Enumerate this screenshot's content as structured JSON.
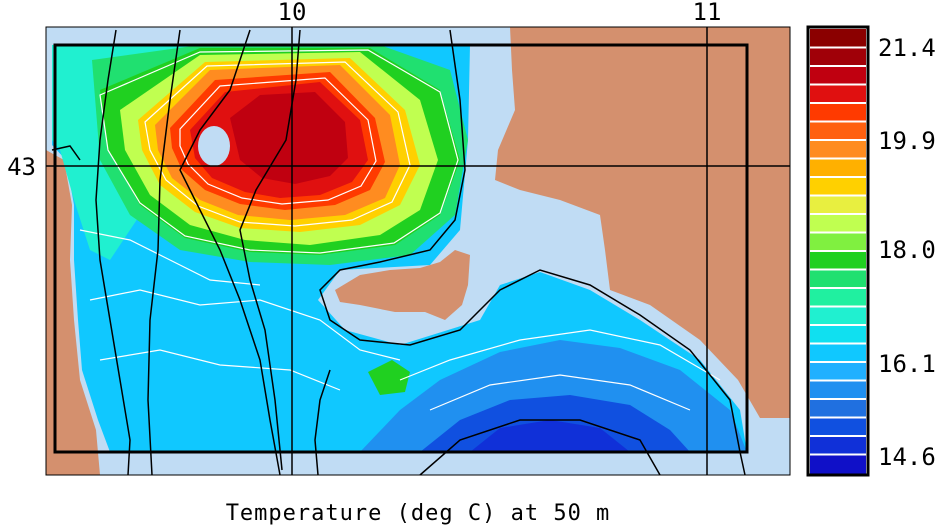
{
  "title": "Temperature (deg C) at 50 m",
  "axes": {
    "lon_ticks": [
      "10",
      "11"
    ],
    "lat_ticks": [
      "43"
    ]
  },
  "colorbar": {
    "labels": [
      "21.4",
      "19.9",
      "18.0",
      "16.1",
      "14.6"
    ],
    "colors": [
      "#8b0000",
      "#a00008",
      "#c00010",
      "#e01010",
      "#ff3a00",
      "#ff6010",
      "#ff8c20",
      "#ffb000",
      "#ffd000",
      "#e8ef40",
      "#c0ff50",
      "#80f040",
      "#20d020",
      "#20e070",
      "#20f0a0",
      "#20f0d0",
      "#10e0f0",
      "#10c8ff",
      "#20b0ff",
      "#2090f0",
      "#2070e0",
      "#1050e0",
      "#1030d8",
      "#1010c8"
    ]
  },
  "colors": {
    "land": "#d4906e",
    "shelf": "#c0dcf4",
    "frame": "#000000"
  }
}
